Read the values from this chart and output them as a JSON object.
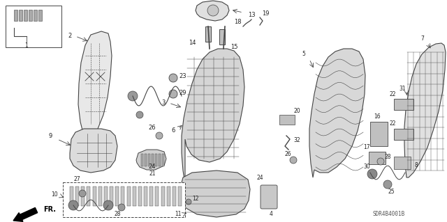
{
  "diagram_id": "SDR4B4001B",
  "bg_color": "#ffffff",
  "lc": "#444444",
  "tc": "#222222",
  "fig_width": 6.4,
  "fig_height": 3.19,
  "dpi": 100
}
